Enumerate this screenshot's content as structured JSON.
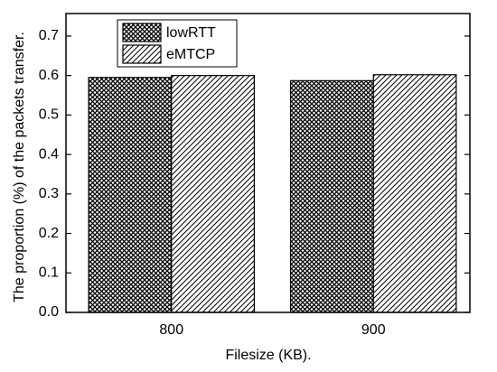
{
  "chart_data": {
    "type": "bar",
    "x_label": "Filesize (KB).",
    "y_label": "The proportion (%) of the packets transfer.",
    "categories": [
      "800",
      "900"
    ],
    "series": [
      {
        "name": "lowRTT",
        "color": "#000000",
        "hatch": "crosshatch",
        "values": [
          0.595,
          0.587
        ]
      },
      {
        "name": "eMTCP",
        "color": "#000000",
        "hatch": "diagonal",
        "values": [
          0.6,
          0.602
        ]
      }
    ],
    "ylim": [
      0,
      0.757
    ],
    "yticks": [
      {
        "value": 0,
        "label": "0.0"
      },
      0.1,
      0.2,
      0.3,
      0.4,
      0.5,
      0.6,
      0.7
    ],
    "legend": "upper left"
  }
}
